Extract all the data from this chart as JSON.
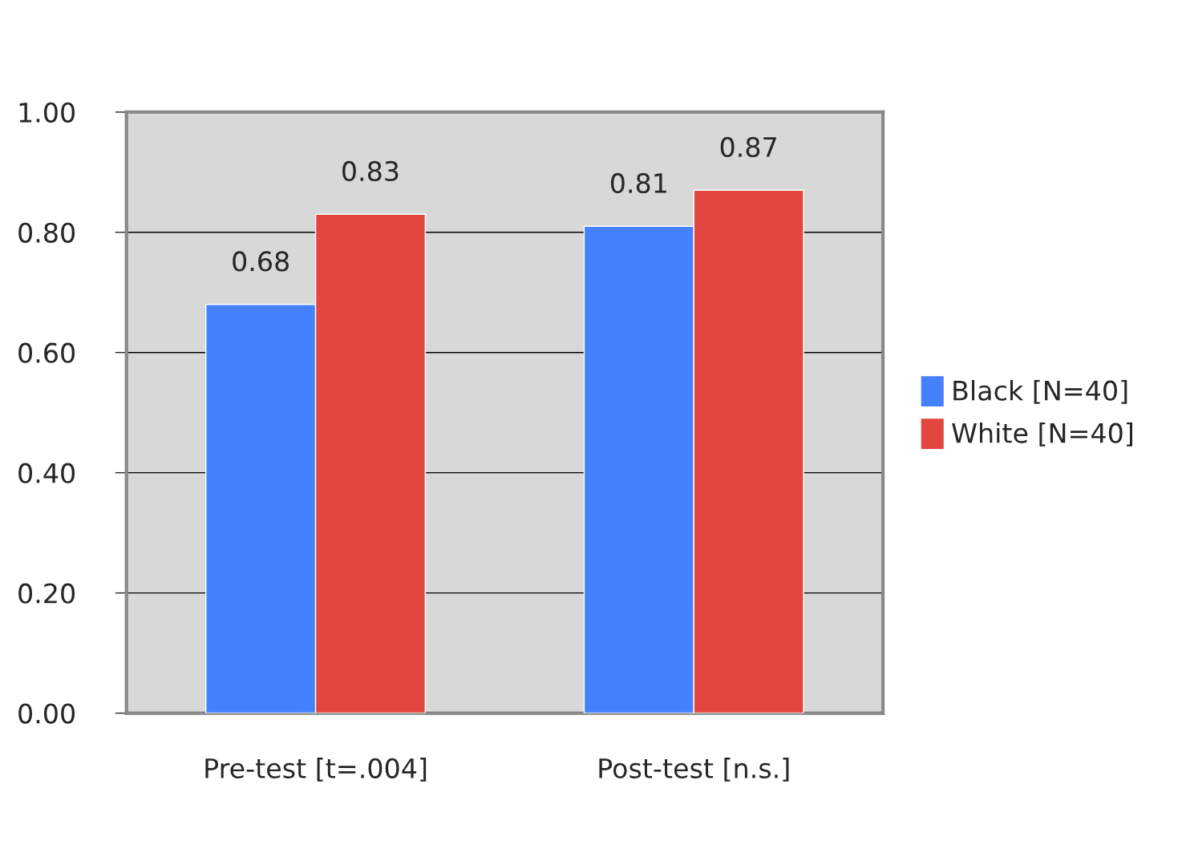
{
  "chart_data": {
    "type": "bar",
    "categories": [
      "Pre-test [t=.004]",
      "Post-test [n.s.]"
    ],
    "series": [
      {
        "name": "Black [N=40]",
        "color": "#4580ff",
        "values": [
          0.68,
          0.81
        ]
      },
      {
        "name": "White [N=40]",
        "color": "#e24640",
        "values": [
          0.83,
          0.87
        ]
      }
    ],
    "ylim": [
      0,
      1
    ],
    "yticks": [
      {
        "value": 0,
        "label": "0.00"
      },
      {
        "value": 0.2,
        "label": "0.20"
      },
      {
        "value": 0.4,
        "label": "0.40"
      },
      {
        "value": 0.6,
        "label": "0.60"
      },
      {
        "value": 0.8,
        "label": "0.80"
      },
      {
        "value": 1,
        "label": "1.00"
      }
    ],
    "grid": "y",
    "legend": "right",
    "data_labels": true
  }
}
